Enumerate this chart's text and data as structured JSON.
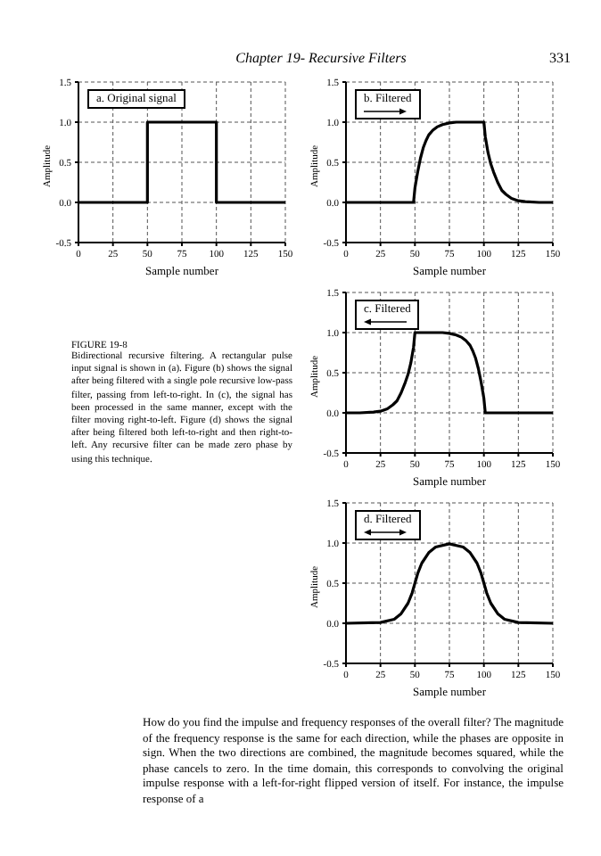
{
  "chart_data": [
    {
      "type": "line",
      "title": "a. Original signal",
      "xlabel": "Sample number",
      "ylabel": "Amplitude",
      "xlim": [
        0,
        150
      ],
      "xticks": [
        0,
        25,
        50,
        75,
        100,
        125,
        150
      ],
      "ylim": [
        -0.5,
        1.5
      ],
      "yticks": [
        {
          "value": -0.5,
          "label": "-0.5"
        },
        {
          "value": 0,
          "label": "0.0"
        },
        {
          "value": 0.5,
          "label": "0.5"
        },
        {
          "value": 1,
          "label": "1.0"
        },
        {
          "value": 1.5,
          "label": "1.5"
        }
      ],
      "grid": true,
      "line_style": "solid",
      "x": [
        0,
        50,
        50,
        100,
        100,
        150
      ],
      "series": [
        {
          "color": "#000000",
          "values": [
            0,
            0,
            1,
            1,
            0,
            0
          ]
        }
      ],
      "annotations": [
        "Chapter 19- Recursive Filters",
        "331",
        "FIGURE 19-8",
        "Bidirectional recursive filtering. A rectangular pulse input signal is shown in (a). Figure (b) shows the signal after being filtered with a single pole recursive low-pass filter, passing from left-to-right. In (c), the signal has been processed in the same manner, except with the filter moving right-to-left. Figure (d) shows the signal after being filtered both left-to-right and then right-to-left. Any recursive filter can be made zero phase by using this technique.",
        "How do you find the impulse and frequency responses of the overall filter? The magnitude of the frequency response is the same for each direction, while the phases are opposite in sign. When the two directions are combined, the magnitude becomes squared, while the phase cancels to zero. In the time domain, this corresponds to convolving the original impulse response with a left-for-right flipped version of itself. For instance, the impulse response of a"
      ]
    },
    {
      "type": "line",
      "title": "b. Filtered",
      "xlabel": "Sample number",
      "ylabel": "Amplitude",
      "xlim": [
        0,
        150
      ],
      "xticks": [
        0,
        25,
        50,
        75,
        100,
        125,
        150
      ],
      "ylim": [
        -0.5,
        1.5
      ],
      "yticks": [
        {
          "value": -0.5,
          "label": "-0.5"
        },
        {
          "value": 0,
          "label": "0.0"
        },
        {
          "value": 0.5,
          "label": "0.5"
        },
        {
          "value": 1,
          "label": "1.0"
        },
        {
          "value": 1.5,
          "label": "1.5"
        }
      ],
      "grid": true,
      "line_style": "solid",
      "x": [
        0,
        49,
        50,
        52,
        54,
        56,
        58,
        60,
        63,
        66,
        70,
        75,
        80,
        100,
        101,
        103,
        105,
        107,
        110,
        113,
        116,
        120,
        125,
        130,
        140,
        150
      ],
      "series": [
        {
          "color": "#000000",
          "values": [
            0,
            0,
            0.18,
            0.38,
            0.55,
            0.68,
            0.77,
            0.84,
            0.9,
            0.94,
            0.97,
            0.99,
            1,
            1,
            0.82,
            0.62,
            0.48,
            0.38,
            0.25,
            0.15,
            0.1,
            0.05,
            0.02,
            0.01,
            0,
            0
          ]
        }
      ]
    },
    {
      "type": "line",
      "title": "c. Filtered",
      "xlabel": "Sample number",
      "ylabel": "Amplitude",
      "xlim": [
        0,
        150
      ],
      "xticks": [
        0,
        25,
        50,
        75,
        100,
        125,
        150
      ],
      "ylim": [
        -0.5,
        1.5
      ],
      "yticks": [
        {
          "value": -0.5,
          "label": "-0.5"
        },
        {
          "value": 0,
          "label": "0.0"
        },
        {
          "value": 0.5,
          "label": "0.5"
        },
        {
          "value": 1,
          "label": "1.0"
        },
        {
          "value": 1.5,
          "label": "1.5"
        }
      ],
      "grid": true,
      "line_style": "solid",
      "x": [
        0,
        10,
        20,
        25,
        30,
        34,
        37,
        40,
        43,
        45,
        47,
        49,
        50,
        70,
        75,
        80,
        84,
        87,
        90,
        92,
        94,
        96,
        98,
        100,
        101,
        150
      ],
      "series": [
        {
          "color": "#000000",
          "values": [
            0,
            0,
            0.01,
            0.02,
            0.05,
            0.1,
            0.15,
            0.25,
            0.38,
            0.48,
            0.62,
            0.82,
            1,
            1,
            0.99,
            0.97,
            0.94,
            0.9,
            0.84,
            0.77,
            0.68,
            0.55,
            0.38,
            0.18,
            0,
            0
          ]
        }
      ]
    },
    {
      "type": "line",
      "title": "d. Filtered",
      "xlabel": "Sample number",
      "ylabel": "Amplitude",
      "xlim": [
        0,
        150
      ],
      "xticks": [
        0,
        25,
        50,
        75,
        100,
        125,
        150
      ],
      "ylim": [
        -0.5,
        1.5
      ],
      "yticks": [
        {
          "value": -0.5,
          "label": "-0.5"
        },
        {
          "value": 0,
          "label": "0.0"
        },
        {
          "value": 0.5,
          "label": "0.5"
        },
        {
          "value": 1,
          "label": "1.0"
        },
        {
          "value": 1.5,
          "label": "1.5"
        }
      ],
      "grid": true,
      "line_style": "solid",
      "x": [
        0,
        25,
        35,
        40,
        45,
        48,
        50,
        52,
        55,
        60,
        65,
        75,
        85,
        90,
        95,
        98,
        100,
        102,
        105,
        110,
        115,
        125,
        150
      ],
      "series": [
        {
          "color": "#000000",
          "values": [
            0,
            0.01,
            0.05,
            0.12,
            0.25,
            0.38,
            0.5,
            0.62,
            0.75,
            0.88,
            0.95,
            0.99,
            0.95,
            0.88,
            0.75,
            0.62,
            0.5,
            0.38,
            0.25,
            0.12,
            0.05,
            0.01,
            0
          ]
        }
      ]
    }
  ]
}
